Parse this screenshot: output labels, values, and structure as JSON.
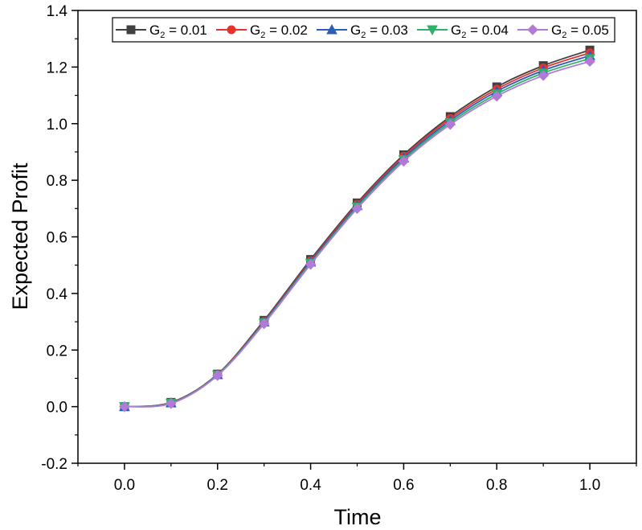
{
  "chart_data": {
    "type": "line",
    "xlabel": "Time",
    "ylabel": "Expected Profit",
    "xlim": [
      -0.1,
      1.1
    ],
    "ylim": [
      -0.2,
      1.4
    ],
    "xticks": [
      "0.0",
      "0.2",
      "0.4",
      "0.6",
      "0.8",
      "1.0"
    ],
    "yticks": [
      "-0.2",
      "0.0",
      "0.2",
      "0.4",
      "0.6",
      "0.8",
      "1.0",
      "1.2",
      "1.4"
    ],
    "grid": false,
    "legend_position": "top",
    "x": [
      0.0,
      0.1,
      0.2,
      0.3,
      0.4,
      0.5,
      0.6,
      0.7,
      0.8,
      0.9,
      1.0
    ],
    "series": [
      {
        "name_main": "G",
        "name_sub": "2",
        "name_rest": " = 0.01",
        "color": "#404040",
        "marker": "square",
        "values": [
          0.0,
          0.015,
          0.115,
          0.305,
          0.52,
          0.72,
          0.89,
          1.025,
          1.13,
          1.205,
          1.26
        ]
      },
      {
        "name_main": "G",
        "name_sub": "2",
        "name_rest": " = 0.02",
        "color": "#e8322d",
        "marker": "circle",
        "values": [
          0.0,
          0.014,
          0.114,
          0.302,
          0.515,
          0.715,
          0.885,
          1.018,
          1.122,
          1.197,
          1.25
        ]
      },
      {
        "name_main": "G",
        "name_sub": "2",
        "name_rest": " = 0.03",
        "color": "#2a5db8",
        "marker": "triangle-up",
        "values": [
          0.0,
          0.013,
          0.113,
          0.299,
          0.511,
          0.71,
          0.879,
          1.011,
          1.114,
          1.188,
          1.24
        ]
      },
      {
        "name_main": "G",
        "name_sub": "2",
        "name_rest": " = 0.04",
        "color": "#2eb06a",
        "marker": "triangle-down",
        "values": [
          0.0,
          0.012,
          0.112,
          0.296,
          0.507,
          0.705,
          0.873,
          1.004,
          1.105,
          1.179,
          1.23
        ]
      },
      {
        "name_main": "G",
        "name_sub": "2",
        "name_rest": " = 0.05",
        "color": "#b07ad6",
        "marker": "diamond",
        "values": [
          0.0,
          0.011,
          0.11,
          0.293,
          0.503,
          0.7,
          0.867,
          0.997,
          1.097,
          1.17,
          1.22
        ]
      }
    ]
  }
}
